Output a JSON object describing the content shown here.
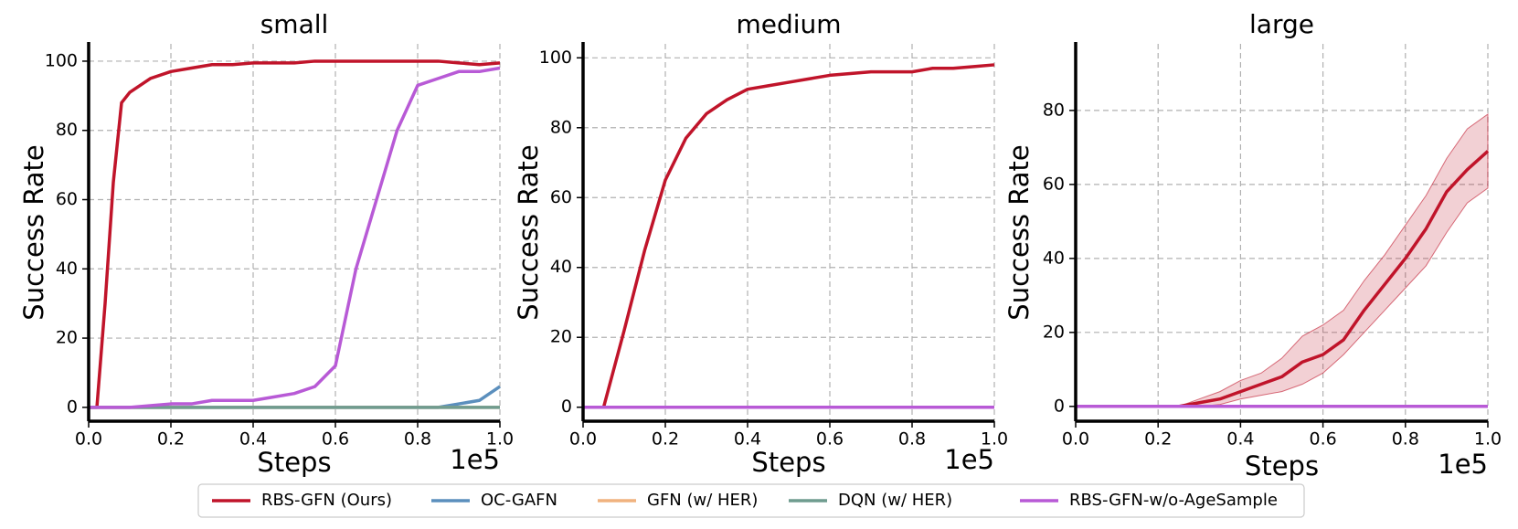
{
  "chart_data": [
    {
      "type": "line",
      "title": "small",
      "xlabel": "Steps",
      "ylabel": "Success Rate",
      "x_offset": "1e5",
      "x": [
        0,
        0.02,
        0.04,
        0.06,
        0.08,
        0.1,
        0.15,
        0.2,
        0.25,
        0.3,
        0.35,
        0.4,
        0.45,
        0.5,
        0.55,
        0.6,
        0.65,
        0.7,
        0.75,
        0.8,
        0.85,
        0.9,
        0.95,
        1.0
      ],
      "xlim": [
        0,
        1
      ],
      "xticks": [
        {
          "value": 0,
          "label": "0.0"
        },
        0.2,
        0.4,
        0.6,
        0.8,
        {
          "value": 1,
          "label": "1.0"
        }
      ],
      "ylim": [
        -4,
        105
      ],
      "yticks": [
        0,
        20,
        40,
        60,
        80,
        100
      ],
      "grid": true,
      "series": [
        {
          "name": "RBS-GFN (Ours)",
          "color": "#c0142a",
          "values": [
            0,
            0,
            30,
            65,
            88,
            91,
            95,
            97,
            98,
            99,
            99,
            99.5,
            99.5,
            99.5,
            100,
            100,
            100,
            100,
            100,
            100,
            100,
            99.5,
            99,
            99.5
          ]
        },
        {
          "name": "OC-GAFN",
          "color": "#5b8fbd",
          "values": [
            0,
            0,
            0,
            0,
            0,
            0,
            0,
            0,
            0,
            0,
            0,
            0,
            0,
            0,
            0,
            0,
            0,
            0,
            0,
            0,
            0,
            1,
            2,
            6
          ]
        },
        {
          "name": "GFN (w/ HER)",
          "color": "#f0b27f",
          "values": [
            0,
            0,
            0,
            0,
            0,
            0,
            0,
            0,
            0,
            0,
            0,
            0,
            0,
            0,
            0,
            0,
            0,
            0,
            0,
            0,
            0,
            0,
            0,
            0
          ]
        },
        {
          "name": "DQN (w/ HER)",
          "color": "#6f9c8f",
          "values": [
            0,
            0,
            0,
            0,
            0,
            0,
            0,
            0,
            0,
            0,
            0,
            0,
            0,
            0,
            0,
            0,
            0,
            0,
            0,
            0,
            0,
            0,
            0,
            0
          ]
        },
        {
          "name": "RBS-GFN-w/o-AgeSample",
          "color": "#b85ad6",
          "values": [
            0,
            0,
            0,
            0,
            0,
            0,
            0.5,
            1,
            1,
            2,
            2,
            2,
            3,
            4,
            6,
            12,
            40,
            60,
            80,
            93,
            95,
            97,
            97,
            98
          ]
        }
      ]
    },
    {
      "type": "line",
      "title": "medium",
      "xlabel": "Steps",
      "ylabel": "Success Rate",
      "x_offset": "1e5",
      "x": [
        0,
        0.05,
        0.1,
        0.15,
        0.2,
        0.25,
        0.3,
        0.35,
        0.4,
        0.45,
        0.5,
        0.55,
        0.6,
        0.65,
        0.7,
        0.75,
        0.8,
        0.85,
        0.9,
        0.95,
        1.0
      ],
      "xlim": [
        0,
        1
      ],
      "xticks": [
        {
          "value": 0,
          "label": "0.0"
        },
        0.2,
        0.4,
        0.6,
        0.8,
        {
          "value": 1,
          "label": "1.0"
        }
      ],
      "ylim": [
        -4,
        104
      ],
      "yticks": [
        0,
        20,
        40,
        60,
        80,
        100
      ],
      "grid": true,
      "series": [
        {
          "color": "#c0142a",
          "values": [
            0,
            0,
            22,
            45,
            65,
            77,
            84,
            88,
            91,
            92,
            93,
            94,
            95,
            95.5,
            96,
            96,
            96,
            97,
            97,
            97.5,
            98
          ]
        },
        {
          "color": "#b85ad6",
          "values": [
            0,
            0,
            0,
            0,
            0,
            0,
            0,
            0,
            0,
            0,
            0,
            0,
            0,
            0,
            0,
            0,
            0,
            0,
            0,
            0,
            0
          ]
        }
      ]
    },
    {
      "type": "line",
      "title": "large",
      "xlabel": "Steps",
      "ylabel": "Success Rate",
      "x_offset": "1e5",
      "x": [
        0,
        0.05,
        0.1,
        0.15,
        0.2,
        0.25,
        0.3,
        0.35,
        0.4,
        0.45,
        0.5,
        0.55,
        0.6,
        0.65,
        0.7,
        0.75,
        0.8,
        0.85,
        0.9,
        0.95,
        1.0
      ],
      "xlim": [
        0,
        1
      ],
      "xticks": [
        {
          "value": 0,
          "label": "0.0"
        },
        0.2,
        0.4,
        0.6,
        0.8,
        {
          "value": 1,
          "label": "1.0"
        }
      ],
      "ylim": [
        -4,
        98
      ],
      "yticks": [
        0,
        20,
        40,
        60,
        80
      ],
      "grid": true,
      "series": [
        {
          "color": "#c0142a",
          "values": [
            0,
            0,
            0,
            0,
            0,
            0,
            1,
            2,
            4,
            6,
            8,
            12,
            14,
            18,
            26,
            33,
            40,
            48,
            58,
            64,
            69
          ],
          "lower": [
            0,
            0,
            0,
            0,
            0,
            0,
            0,
            0.5,
            2,
            3,
            4,
            6,
            9,
            14,
            20,
            26,
            32,
            38,
            47,
            55,
            59
          ],
          "upper": [
            0,
            0,
            0,
            0,
            0,
            0,
            2,
            4,
            7,
            9,
            13,
            19,
            22,
            26,
            34,
            41,
            49,
            57,
            67,
            75,
            79
          ]
        },
        {
          "color": "#b85ad6",
          "values": [
            0,
            0,
            0,
            0,
            0,
            0,
            0,
            0,
            0,
            0,
            0,
            0,
            0,
            0,
            0,
            0,
            0,
            0,
            0,
            0,
            0
          ]
        }
      ]
    }
  ]
}
